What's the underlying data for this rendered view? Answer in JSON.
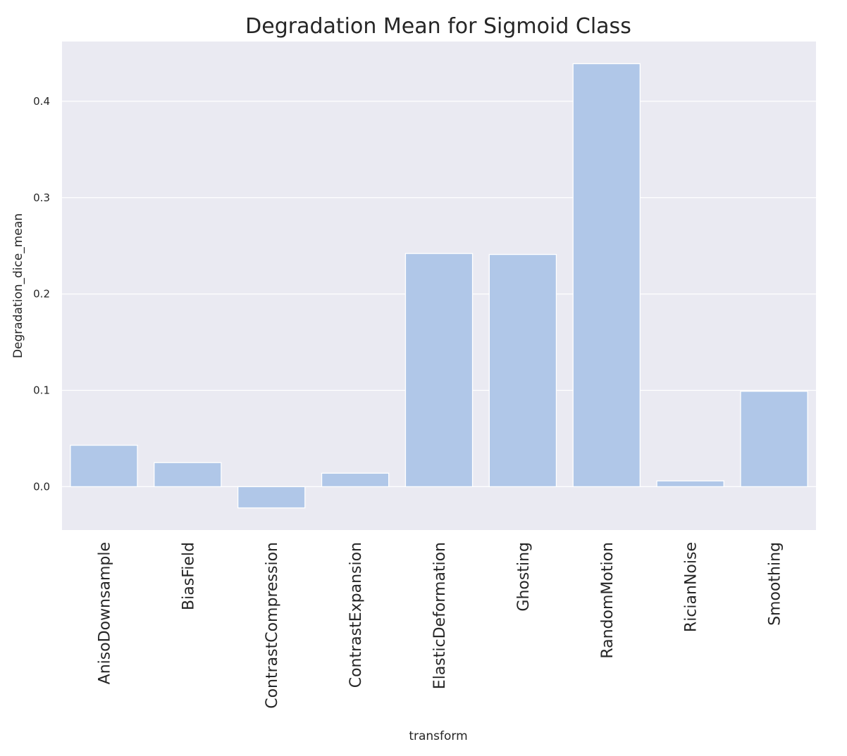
{
  "chart_data": {
    "type": "bar",
    "title": "Degradation Mean for Sigmoid Class",
    "xlabel": "transform",
    "ylabel": "Degradation_dice_mean",
    "categories": [
      "AnisoDownsample",
      "BiasField",
      "ContrastCompression",
      "ContrastExpansion",
      "ElasticDeformation",
      "Ghosting",
      "RandomMotion",
      "RicianNoise",
      "Smoothing"
    ],
    "values": [
      0.043,
      0.025,
      -0.022,
      0.014,
      0.242,
      0.241,
      0.439,
      0.006,
      0.099
    ],
    "ylim": [
      -0.045,
      0.462
    ],
    "yticks": [
      0.0,
      0.1,
      0.2,
      0.3,
      0.4
    ],
    "ytick_labels": [
      "0.0",
      "0.1",
      "0.2",
      "0.3",
      "0.4"
    ],
    "grid": true,
    "legend": "none",
    "colors": {
      "bar": "#b0c7e8",
      "plot_background": "#eaeaf2",
      "grid": "#ffffff",
      "text": "#262626"
    }
  }
}
